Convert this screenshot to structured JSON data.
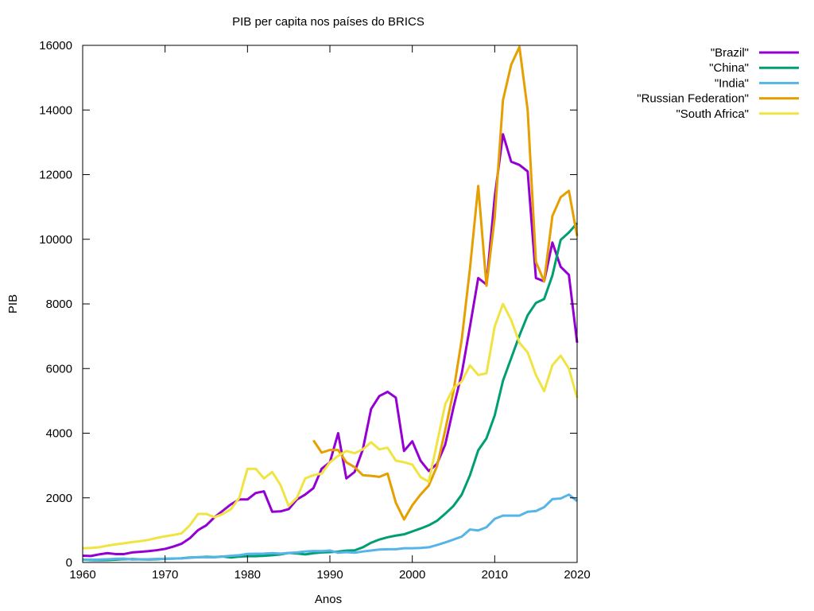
{
  "chart_data": {
    "type": "line",
    "title": "PIB per capita nos países do BRICS",
    "xlabel": "Anos",
    "ylabel": "PIB",
    "xlim": [
      1960,
      2020
    ],
    "ylim": [
      0,
      16000
    ],
    "xticks": [
      1960,
      1970,
      1980,
      1990,
      2000,
      2010,
      2020
    ],
    "yticks": [
      0,
      2000,
      4000,
      6000,
      8000,
      10000,
      12000,
      14000,
      16000
    ],
    "grid": false,
    "legend_position": "outside-top-right",
    "series": [
      {
        "name": "\"Brazil\"",
        "color": "#9400d3",
        "x": [
          1960,
          1961,
          1962,
          1963,
          1964,
          1965,
          1966,
          1967,
          1968,
          1969,
          1970,
          1971,
          1972,
          1973,
          1974,
          1975,
          1976,
          1977,
          1978,
          1979,
          1980,
          1981,
          1982,
          1983,
          1984,
          1985,
          1986,
          1987,
          1988,
          1989,
          1990,
          1991,
          1992,
          1993,
          1994,
          1995,
          1996,
          1997,
          1998,
          1999,
          2000,
          2001,
          2002,
          2003,
          2004,
          2005,
          2006,
          2007,
          2008,
          2009,
          2010,
          2011,
          2012,
          2013,
          2014,
          2015,
          2016,
          2017,
          2018,
          2019,
          2020
        ],
        "y": [
          210,
          200,
          250,
          290,
          260,
          260,
          310,
          330,
          350,
          380,
          420,
          490,
          580,
          750,
          1000,
          1150,
          1400,
          1600,
          1800,
          1950,
          1950,
          2150,
          2200,
          1570,
          1580,
          1650,
          1950,
          2100,
          2300,
          2900,
          3100,
          4000,
          2600,
          2800,
          3500,
          4750,
          5150,
          5280,
          5100,
          3450,
          3750,
          3150,
          2830,
          3050,
          3650,
          4800,
          5850,
          7300,
          8800,
          8600,
          11300,
          13250,
          12400,
          12300,
          12100,
          8800,
          8700,
          9900,
          9150,
          8900,
          6800
        ]
      },
      {
        "name": "\"China\"",
        "color": "#009e73",
        "x": [
          1960,
          1961,
          1962,
          1963,
          1964,
          1965,
          1966,
          1967,
          1968,
          1969,
          1970,
          1971,
          1972,
          1973,
          1974,
          1975,
          1976,
          1977,
          1978,
          1979,
          1980,
          1981,
          1982,
          1983,
          1984,
          1985,
          1986,
          1987,
          1988,
          1989,
          1990,
          1991,
          1992,
          1993,
          1994,
          1995,
          1996,
          1997,
          1998,
          1999,
          2000,
          2001,
          2002,
          2003,
          2004,
          2005,
          2006,
          2007,
          2008,
          2009,
          2010,
          2011,
          2012,
          2013,
          2014,
          2015,
          2016,
          2017,
          2018,
          2019,
          2020
        ],
        "y": [
          90,
          75,
          70,
          75,
          85,
          100,
          105,
          95,
          90,
          100,
          115,
          120,
          130,
          155,
          160,
          175,
          165,
          185,
          155,
          180,
          195,
          195,
          205,
          225,
          250,
          295,
          280,
          250,
          285,
          310,
          320,
          335,
          365,
          375,
          470,
          610,
          710,
          780,
          830,
          870,
          960,
          1050,
          1150,
          1290,
          1510,
          1750,
          2100,
          2700,
          3470,
          3840,
          4550,
          5620,
          6320,
          7020,
          7650,
          8030,
          8150,
          8880,
          9980,
          10210,
          10500
        ]
      },
      {
        "name": "\"India\"",
        "color": "#56b4e9",
        "x": [
          1960,
          1961,
          1962,
          1963,
          1964,
          1965,
          1966,
          1967,
          1968,
          1969,
          1970,
          1971,
          1972,
          1973,
          1974,
          1975,
          1976,
          1977,
          1978,
          1979,
          1980,
          1981,
          1982,
          1983,
          1984,
          1985,
          1986,
          1987,
          1988,
          1989,
          1990,
          1991,
          1992,
          1993,
          1994,
          1995,
          1996,
          1997,
          1998,
          1999,
          2000,
          2001,
          2002,
          2003,
          2004,
          2005,
          2006,
          2007,
          2008,
          2009,
          2010,
          2011,
          2012,
          2013,
          2014,
          2015,
          2016,
          2017,
          2018,
          2019,
          2020
        ],
        "y": [
          80,
          85,
          90,
          100,
          115,
          120,
          90,
          95,
          100,
          110,
          115,
          120,
          125,
          145,
          165,
          160,
          160,
          185,
          205,
          225,
          265,
          270,
          275,
          290,
          275,
          295,
          310,
          340,
          355,
          350,
          370,
          300,
          320,
          300,
          340,
          370,
          400,
          410,
          410,
          440,
          440,
          450,
          470,
          540,
          620,
          710,
          800,
          1020,
          990,
          1090,
          1350,
          1450,
          1450,
          1450,
          1570,
          1590,
          1710,
          1960,
          1980,
          2100,
          1900
        ]
      },
      {
        "name": "\"Russian Federation\"",
        "color": "#e69f00",
        "x": [
          1988,
          1989,
          1990,
          1991,
          1992,
          1993,
          1994,
          1995,
          1996,
          1997,
          1998,
          1999,
          2000,
          2001,
          2002,
          2003,
          2004,
          2005,
          2006,
          2007,
          2008,
          2009,
          2010,
          2011,
          2012,
          2013,
          2014,
          2015,
          2016,
          2017,
          2018,
          2019,
          2020
        ],
        "y": [
          3780,
          3400,
          3480,
          3480,
          3100,
          2950,
          2700,
          2680,
          2650,
          2750,
          1850,
          1330,
          1770,
          2100,
          2380,
          2980,
          4100,
          5300,
          6900,
          9100,
          11650,
          8560,
          10670,
          14300,
          15400,
          15950,
          14000,
          9300,
          8700,
          10720,
          11300,
          11500,
          10100
        ]
      },
      {
        "name": "\"South Africa\"",
        "color": "#f0e442",
        "x": [
          1960,
          1961,
          1962,
          1963,
          1964,
          1965,
          1966,
          1967,
          1968,
          1969,
          1970,
          1971,
          1972,
          1973,
          1974,
          1975,
          1976,
          1977,
          1978,
          1979,
          1980,
          1981,
          1982,
          1983,
          1984,
          1985,
          1986,
          1987,
          1988,
          1989,
          1990,
          1991,
          1992,
          1993,
          1994,
          1995,
          1996,
          1997,
          1998,
          1999,
          2000,
          2001,
          2002,
          2003,
          2004,
          2005,
          2006,
          2007,
          2008,
          2009,
          2010,
          2011,
          2012,
          2013,
          2014,
          2015,
          2016,
          2017,
          2018,
          2019,
          2020
        ],
        "y": [
          440,
          450,
          470,
          520,
          560,
          590,
          630,
          660,
          700,
          760,
          810,
          850,
          900,
          1150,
          1500,
          1500,
          1400,
          1500,
          1650,
          2000,
          2900,
          2900,
          2600,
          2800,
          2400,
          1750,
          2000,
          2600,
          2700,
          2750,
          3100,
          3300,
          3450,
          3380,
          3500,
          3720,
          3500,
          3550,
          3150,
          3100,
          3030,
          2640,
          2500,
          3700,
          4900,
          5400,
          5600,
          6100,
          5800,
          5850,
          7300,
          8000,
          7500,
          6800,
          6500,
          5800,
          5300,
          6100,
          6400,
          6000,
          5100
        ]
      }
    ]
  }
}
